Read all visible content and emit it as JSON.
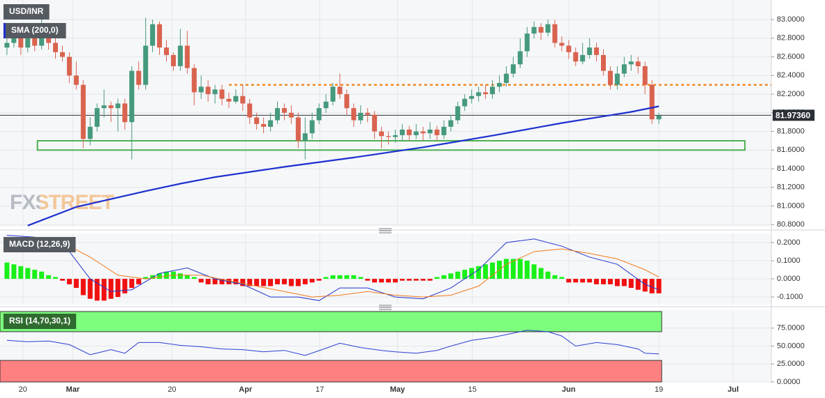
{
  "chart_data": [
    {
      "type": "candlestick",
      "title": "USD/INR",
      "xlim": [
        -1,
        110.2
      ],
      "xticks": [
        {
          "value": 2.3,
          "label": "20"
        },
        {
          "value": 9.5,
          "label": "Mar"
        },
        {
          "value": 23.8,
          "label": "20"
        },
        {
          "value": 34.4,
          "label": "Apr"
        },
        {
          "value": 45.1,
          "label": "17"
        },
        {
          "value": 56.3,
          "label": "May"
        },
        {
          "value": 67.1,
          "label": "15"
        },
        {
          "value": 81,
          "label": "Jun"
        },
        {
          "value": 94,
          "label": "19"
        },
        {
          "value": 104.7,
          "label": "Jul"
        }
      ],
      "ylim": [
        80.78,
        83.21
      ],
      "yticks": [
        {
          "value": 83.0,
          "label": "83.0000"
        },
        {
          "value": 82.8,
          "label": "82.8000"
        },
        {
          "value": 82.6,
          "label": "82.6000"
        },
        {
          "value": 82.4,
          "label": "82.4000"
        },
        {
          "value": 82.2,
          "label": "82.2000"
        },
        {
          "value": 82.0,
          "label": "82.0000"
        },
        {
          "value": 81.8,
          "label": "81.8000"
        },
        {
          "value": 81.6,
          "label": "81.6000"
        },
        {
          "value": 81.4,
          "label": "81.4000"
        },
        {
          "value": 81.2,
          "label": "81.2000"
        },
        {
          "value": 81.0,
          "label": "81.0000"
        },
        {
          "value": 80.8,
          "label": "80.8000"
        }
      ],
      "grid": true,
      "up_color": "#45997c",
      "down_color": "#d9634f",
      "open": [
        82.7,
        82.75,
        82.8,
        82.7,
        82.85,
        82.72,
        82.9,
        82.75,
        82.65,
        82.6,
        82.4,
        82.3,
        81.72,
        81.85,
        82.05,
        82.08,
        82.05,
        82.1,
        81.9,
        82.45,
        82.3,
        82.72,
        82.95,
        82.7,
        82.62,
        82.5,
        82.72,
        82.48,
        82.22,
        82.28,
        82.2,
        82.25,
        82.15,
        82.12,
        82.18,
        82.1,
        81.95,
        81.88,
        81.85,
        81.92,
        82.05,
        82.0,
        81.95,
        81.7,
        81.78,
        81.92,
        82.05,
        82.12,
        82.28,
        82.2,
        82.05,
        81.92,
        82.0,
        81.98,
        81.8,
        81.75,
        81.74,
        81.76,
        81.82,
        81.76,
        81.8,
        81.78,
        81.82,
        81.76,
        81.85,
        81.92,
        82.07,
        82.15,
        82.18,
        82.22,
        82.2,
        82.28,
        82.32,
        82.42,
        82.52,
        82.66,
        82.85,
        82.92,
        82.86,
        82.95,
        82.75,
        82.72,
        82.65,
        82.55,
        82.62,
        82.7,
        82.62,
        82.45,
        82.3,
        82.42,
        82.52,
        82.55,
        82.5,
        82.3,
        81.93
      ],
      "high": [
        82.8,
        82.88,
        82.85,
        82.92,
        82.9,
        83.08,
        82.95,
        82.8,
        82.72,
        82.65,
        82.55,
        82.35,
        81.95,
        82.1,
        82.25,
        82.12,
        82.15,
        82.15,
        82.5,
        82.55,
        83.02,
        83.0,
        82.98,
        82.78,
        82.65,
        82.9,
        82.88,
        82.52,
        82.4,
        82.35,
        82.3,
        82.3,
        82.22,
        82.25,
        82.3,
        82.15,
        82.0,
        81.95,
        82.0,
        82.12,
        82.1,
        82.08,
        82.0,
        81.95,
        82.0,
        82.1,
        82.2,
        82.32,
        82.42,
        82.25,
        82.1,
        82.08,
        82.05,
        82.02,
        81.85,
        81.8,
        81.82,
        81.88,
        81.86,
        81.88,
        81.85,
        81.9,
        81.86,
        81.92,
        81.98,
        82.12,
        82.2,
        82.25,
        82.28,
        82.3,
        82.35,
        82.4,
        82.5,
        82.6,
        82.8,
        82.92,
        82.98,
        82.96,
        83.0,
        83.0,
        82.82,
        82.78,
        82.7,
        82.75,
        82.8,
        82.75,
        82.68,
        82.5,
        82.5,
        82.6,
        82.62,
        82.6,
        82.55,
        82.35,
        82.0
      ],
      "low": [
        82.62,
        82.7,
        82.62,
        82.65,
        82.66,
        82.68,
        82.68,
        82.58,
        82.55,
        82.32,
        82.25,
        81.62,
        81.65,
        81.8,
        81.95,
        81.9,
        81.8,
        81.82,
        81.5,
        82.25,
        82.25,
        82.65,
        82.62,
        82.55,
        82.45,
        82.45,
        82.42,
        82.08,
        82.15,
        82.12,
        82.1,
        82.08,
        82.05,
        82.1,
        82.02,
        81.88,
        81.82,
        81.78,
        81.8,
        81.88,
        81.92,
        81.88,
        81.62,
        81.5,
        81.72,
        81.88,
        82.0,
        82.08,
        82.15,
        81.98,
        81.85,
        81.88,
        81.9,
        81.72,
        81.62,
        81.66,
        81.68,
        81.7,
        81.7,
        81.72,
        81.7,
        81.72,
        81.7,
        81.72,
        81.8,
        81.88,
        82.02,
        82.1,
        82.12,
        82.15,
        82.15,
        82.22,
        82.28,
        82.38,
        82.48,
        82.6,
        82.8,
        82.78,
        82.82,
        82.7,
        82.66,
        82.58,
        82.5,
        82.52,
        82.58,
        82.55,
        82.4,
        82.25,
        82.25,
        82.38,
        82.45,
        82.42,
        82.2,
        81.88,
        81.88
      ],
      "close": [
        82.75,
        82.8,
        82.7,
        82.85,
        82.72,
        82.9,
        82.75,
        82.65,
        82.6,
        82.4,
        82.3,
        81.72,
        81.85,
        82.05,
        82.08,
        82.05,
        82.1,
        81.9,
        82.45,
        82.3,
        82.72,
        82.95,
        82.7,
        82.62,
        82.5,
        82.72,
        82.48,
        82.22,
        82.28,
        82.2,
        82.25,
        82.15,
        82.12,
        82.18,
        82.1,
        81.95,
        81.88,
        81.85,
        81.92,
        82.05,
        82.0,
        81.95,
        81.7,
        81.78,
        81.92,
        82.05,
        82.12,
        82.28,
        82.2,
        82.05,
        81.92,
        82.0,
        81.98,
        81.8,
        81.75,
        81.74,
        81.76,
        81.82,
        81.76,
        81.8,
        81.78,
        81.82,
        81.76,
        81.85,
        81.92,
        82.07,
        82.15,
        82.18,
        82.22,
        82.2,
        82.28,
        82.32,
        82.42,
        82.52,
        82.66,
        82.85,
        82.92,
        82.86,
        82.95,
        82.75,
        82.72,
        82.65,
        82.55,
        82.62,
        82.7,
        82.62,
        82.45,
        82.3,
        82.42,
        82.52,
        82.55,
        82.5,
        82.3,
        81.93,
        81.97
      ],
      "series": [
        {
          "name": "SMA (200,0)",
          "color": "#1c2fcf",
          "x": [
            3,
            10,
            20,
            25,
            30,
            40,
            50,
            60,
            70,
            80,
            90,
            94
          ],
          "values": [
            80.79,
            80.99,
            81.16,
            81.24,
            81.31,
            81.42,
            81.52,
            81.63,
            81.755,
            81.89,
            82.01,
            82.07
          ]
        }
      ],
      "last_price": {
        "value": 81.9736,
        "label": "81.97360"
      },
      "resistance": {
        "value": 82.3,
        "x": [
          32,
          110.2
        ],
        "color": "#f08a24"
      },
      "support_zone": {
        "range": [
          81.6,
          81.7
        ],
        "x": [
          4.4,
          106.4
        ],
        "color": "#4caf50"
      },
      "watermark": "FXSTREET"
    },
    {
      "type": "macd",
      "title": "MACD (12,26,9)",
      "ylim": [
        -0.142,
        0.25
      ],
      "yticks": [
        {
          "value": 0.2,
          "label": "0.2000"
        },
        {
          "value": 0.1,
          "label": "0.1000"
        },
        {
          "value": 0,
          "label": "0.0000"
        },
        {
          "value": -0.1,
          "label": "-0.1000"
        }
      ],
      "grid": true,
      "up_color": "#19f019",
      "down_color": "#f01010",
      "histogram": [
        0.09,
        0.08,
        0.07,
        0.06,
        0.05,
        0.04,
        0.02,
        0.01,
        -0.01,
        -0.03,
        -0.05,
        -0.09,
        -0.11,
        -0.12,
        -0.12,
        -0.11,
        -0.1,
        -0.08,
        -0.05,
        -0.03,
        0.01,
        0.02,
        0.03,
        0.04,
        0.04,
        0.03,
        0.02,
        0.01,
        -0.02,
        -0.03,
        -0.03,
        -0.03,
        -0.03,
        -0.03,
        -0.04,
        -0.04,
        -0.04,
        -0.04,
        -0.04,
        -0.03,
        -0.03,
        -0.04,
        -0.04,
        -0.03,
        -0.02,
        -0.01,
        0.01,
        0.02,
        0.02,
        0.02,
        0.02,
        0.01,
        -0.01,
        -0.02,
        -0.02,
        -0.02,
        -0.02,
        -0.01,
        -0.01,
        -0.01,
        -0.01,
        -0.01,
        0.01,
        0.02,
        0.03,
        0.04,
        0.05,
        0.06,
        0.07,
        0.08,
        0.09,
        0.1,
        0.11,
        0.11,
        0.11,
        0.1,
        0.08,
        0.06,
        0.04,
        0.02,
        0.01,
        -0.02,
        -0.02,
        -0.02,
        -0.02,
        -0.03,
        -0.03,
        -0.03,
        -0.04,
        -0.04,
        -0.05,
        -0.06,
        -0.07,
        -0.08,
        -0.08
      ],
      "series": [
        {
          "color": "#2233cc",
          "x": [
            0,
            4,
            9,
            12,
            15,
            18,
            22,
            26,
            30,
            34,
            38,
            42,
            45,
            48,
            52,
            56,
            60,
            64,
            68,
            72,
            76,
            80,
            84,
            88,
            92,
            94
          ],
          "values": [
            0.24,
            0.23,
            0.15,
            0.0,
            -0.07,
            -0.06,
            0.03,
            0.06,
            0.0,
            -0.03,
            -0.1,
            -0.1,
            -0.12,
            -0.05,
            -0.05,
            -0.1,
            -0.11,
            -0.05,
            0.05,
            0.2,
            0.22,
            0.18,
            0.12,
            0.08,
            -0.03,
            -0.06
          ]
        },
        {
          "color": "#f07a1a",
          "x": [
            0,
            4,
            8,
            12,
            16,
            20,
            24,
            28,
            32,
            36,
            40,
            44,
            48,
            52,
            56,
            60,
            64,
            68,
            72,
            76,
            80,
            84,
            88,
            92,
            94
          ],
          "values": [
            0.22,
            0.23,
            0.2,
            0.12,
            0.02,
            0.0,
            0.02,
            0.02,
            -0.01,
            -0.04,
            -0.07,
            -0.1,
            -0.09,
            -0.07,
            -0.09,
            -0.1,
            -0.09,
            -0.04,
            0.08,
            0.15,
            0.165,
            0.14,
            0.11,
            0.05,
            0.01
          ]
        }
      ]
    },
    {
      "type": "line",
      "title": "RSI (14,70,30,1)",
      "ylim": [
        0,
        100
      ],
      "yticks": [
        {
          "value": 75,
          "label": "75.0000"
        },
        {
          "value": 50,
          "label": "50.0000"
        },
        {
          "value": 25,
          "label": "25.0000"
        },
        {
          "value": 0,
          "label": "0.0000"
        }
      ],
      "grid": true,
      "overbought": 70,
      "oversold": 30,
      "overbought_color": "#7dfc7d",
      "oversold_color": "#ff8080",
      "series": [
        {
          "color": "#2a3fd0",
          "x": [
            0,
            3,
            6,
            9,
            12,
            15,
            17,
            19,
            22,
            25,
            28,
            31,
            34,
            37,
            40,
            43,
            46,
            48,
            51,
            54,
            56,
            59,
            62,
            64,
            67,
            70,
            73,
            75,
            78,
            80,
            82,
            85,
            88,
            91,
            92,
            94
          ],
          "values": [
            58,
            56,
            57,
            52,
            38,
            45,
            40,
            55,
            55,
            51,
            49,
            46,
            45,
            42,
            44,
            37,
            47,
            54,
            48,
            44,
            42,
            40,
            44,
            50,
            58,
            62,
            68,
            72,
            70,
            64,
            50,
            55,
            52,
            46,
            40,
            39
          ]
        }
      ]
    }
  ]
}
